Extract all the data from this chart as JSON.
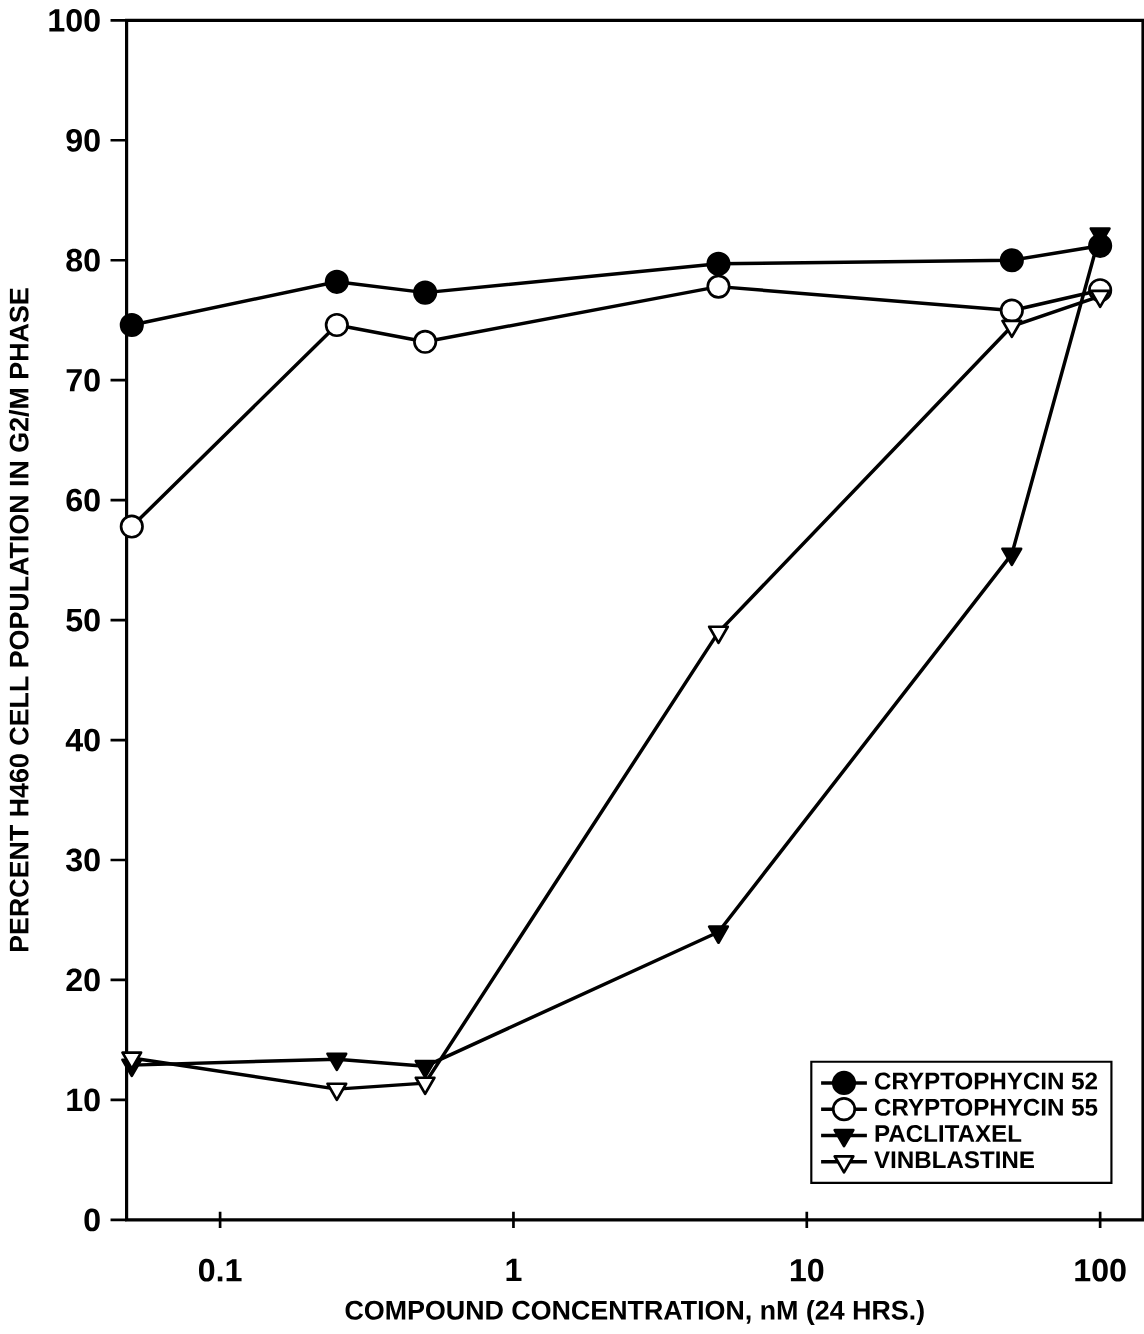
{
  "chart_data": {
    "type": "line",
    "xlabel": "COMPOUND CONCENTRATION, nM (24 HRS.)",
    "ylabel": "PERCENT H460 CELL POPULATION IN G2/M PHASE",
    "log": "x",
    "x": [
      0.05,
      0.25,
      0.5,
      5,
      50,
      100
    ],
    "xlim": [
      0.048,
      140
    ],
    "xticks": [
      0.1,
      1,
      10,
      100
    ],
    "ylim": [
      0,
      100
    ],
    "yticks": [
      0,
      10,
      20,
      30,
      40,
      50,
      60,
      70,
      80,
      90,
      100
    ],
    "legend": "bottom right",
    "grid": false,
    "series": [
      {
        "name": "CRYPTOPHYCIN 52",
        "color": "#000000",
        "marker": "circle",
        "values": [
          74.6,
          78.2,
          77.3,
          79.7,
          80.0,
          81.2
        ]
      },
      {
        "name": "CRYPTOPHYCIN 55",
        "color": "#000000",
        "marker": "circle-open",
        "values": [
          57.8,
          74.6,
          73.2,
          77.8,
          75.8,
          77.5
        ]
      },
      {
        "name": "PACLITAXEL",
        "color": "#000000",
        "marker": "triangle-down",
        "values": [
          12.9,
          13.4,
          12.8,
          24,
          55.5,
          82.2
        ]
      },
      {
        "name": "VINBLASTINE",
        "color": "#000000",
        "marker": "triangle-down-open",
        "values": [
          13.5,
          10.9,
          11.4,
          49,
          74.5,
          77
        ]
      }
    ]
  }
}
